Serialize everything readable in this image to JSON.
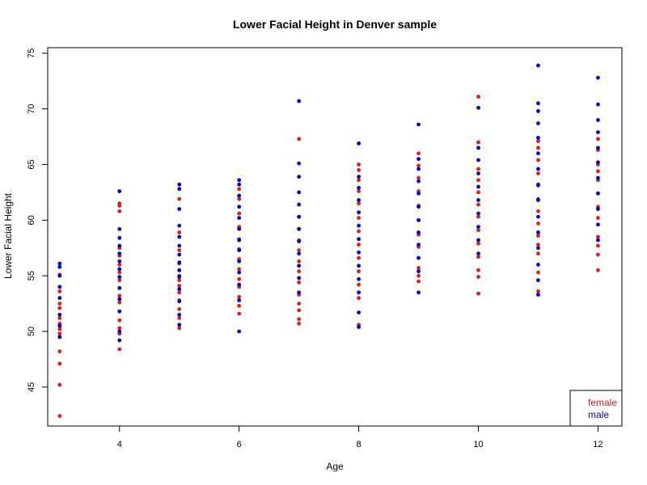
{
  "chart_data": {
    "type": "scatter",
    "title": "Lower Facial Height in Denver sample",
    "xlabel": "Age",
    "ylabel": "Lower Facial Height",
    "xlim": [
      2.8,
      12.4
    ],
    "ylim": [
      41.5,
      75.5
    ],
    "xticks": [
      4,
      6,
      8,
      10,
      12
    ],
    "yticks": [
      45,
      50,
      55,
      60,
      65,
      70,
      75
    ],
    "grid": false,
    "legend_position": "bottom-right",
    "colors": {
      "female": "#e31a1c",
      "male": "#0000cc",
      "axis": "#000000"
    },
    "series": [
      {
        "name": "female",
        "color": "#e31a1c",
        "points": [
          [
            3,
            42.4
          ],
          [
            3,
            45.2
          ],
          [
            3,
            47.1
          ],
          [
            3,
            48.2
          ],
          [
            3,
            49.8
          ],
          [
            3,
            50.2
          ],
          [
            3,
            50.7
          ],
          [
            3,
            51.2
          ],
          [
            3,
            52.1
          ],
          [
            3,
            52.5
          ],
          [
            3,
            53.6
          ],
          [
            3,
            55.1
          ],
          [
            4,
            48.4
          ],
          [
            4,
            49.8
          ],
          [
            4,
            50.3
          ],
          [
            4,
            51.0
          ],
          [
            4,
            51.8
          ],
          [
            4,
            52.6
          ],
          [
            4,
            53.2
          ],
          [
            4,
            53.9
          ],
          [
            4,
            54.6
          ],
          [
            4,
            55.3
          ],
          [
            4,
            56.0
          ],
          [
            4,
            56.8
          ],
          [
            4,
            57.5
          ],
          [
            4,
            60.8
          ],
          [
            4,
            61.3
          ],
          [
            4,
            61.5
          ],
          [
            5,
            50.3
          ],
          [
            5,
            51.2
          ],
          [
            5,
            52.0
          ],
          [
            5,
            52.8
          ],
          [
            5,
            53.5
          ],
          [
            5,
            54.1
          ],
          [
            5,
            54.6
          ],
          [
            5,
            55.0
          ],
          [
            5,
            55.5
          ],
          [
            5,
            56.1
          ],
          [
            5,
            57.3
          ],
          [
            5,
            58.9
          ],
          [
            5,
            61.9
          ],
          [
            6,
            51.6
          ],
          [
            6,
            52.3
          ],
          [
            6,
            53.1
          ],
          [
            6,
            54.0
          ],
          [
            6,
            54.7
          ],
          [
            6,
            55.6
          ],
          [
            6,
            56.5
          ],
          [
            6,
            57.4
          ],
          [
            6,
            58.3
          ],
          [
            6,
            59.4
          ],
          [
            6,
            60.6
          ],
          [
            6,
            61.9
          ],
          [
            6,
            62.8
          ],
          [
            7,
            50.7
          ],
          [
            7,
            51.1
          ],
          [
            7,
            51.9
          ],
          [
            7,
            52.5
          ],
          [
            7,
            53.3
          ],
          [
            7,
            54.4
          ],
          [
            7,
            55.4
          ],
          [
            7,
            56.3
          ],
          [
            7,
            57.3
          ],
          [
            7,
            58.2
          ],
          [
            7,
            59.2
          ],
          [
            7,
            60.3
          ],
          [
            7,
            67.3
          ],
          [
            8,
            50.6
          ],
          [
            8,
            53.0
          ],
          [
            8,
            54.2
          ],
          [
            8,
            55.4
          ],
          [
            8,
            56.6
          ],
          [
            8,
            57.8
          ],
          [
            8,
            59.0
          ],
          [
            8,
            60.2
          ],
          [
            8,
            61.5
          ],
          [
            8,
            62.6
          ],
          [
            8,
            63.6
          ],
          [
            8,
            64.5
          ],
          [
            8,
            65.0
          ],
          [
            9,
            54.5
          ],
          [
            9,
            55.0
          ],
          [
            9,
            55.7
          ],
          [
            9,
            56.6
          ],
          [
            9,
            57.6
          ],
          [
            9,
            58.7
          ],
          [
            9,
            60.0
          ],
          [
            9,
            61.3
          ],
          [
            9,
            62.6
          ],
          [
            9,
            63.8
          ],
          [
            9,
            64.9
          ],
          [
            9,
            65.5
          ],
          [
            9,
            66.0
          ],
          [
            10,
            53.4
          ],
          [
            10,
            54.9
          ],
          [
            10,
            55.5
          ],
          [
            10,
            56.7
          ],
          [
            10,
            57.9
          ],
          [
            10,
            59.1
          ],
          [
            10,
            60.3
          ],
          [
            10,
            61.4
          ],
          [
            10,
            62.5
          ],
          [
            10,
            63.6
          ],
          [
            10,
            64.6
          ],
          [
            10,
            67.0
          ],
          [
            10,
            71.1
          ],
          [
            11,
            53.6
          ],
          [
            11,
            55.3
          ],
          [
            11,
            57.0
          ],
          [
            11,
            57.8
          ],
          [
            11,
            58.6
          ],
          [
            11,
            59.7
          ],
          [
            11,
            60.8
          ],
          [
            11,
            61.9
          ],
          [
            11,
            63.1
          ],
          [
            11,
            64.2
          ],
          [
            11,
            65.4
          ],
          [
            11,
            66.5
          ],
          [
            11,
            67.1
          ],
          [
            12,
            55.5
          ],
          [
            12,
            56.9
          ],
          [
            12,
            57.7
          ],
          [
            12,
            58.5
          ],
          [
            12,
            60.2
          ],
          [
            12,
            61.2
          ],
          [
            12,
            62.4
          ],
          [
            12,
            63.6
          ],
          [
            12,
            64.4
          ],
          [
            12,
            65.0
          ],
          [
            12,
            66.3
          ],
          [
            12,
            67.3
          ]
        ]
      },
      {
        "name": "male",
        "color": "#0000cc",
        "points": [
          [
            3,
            49.5
          ],
          [
            3,
            50.5
          ],
          [
            3,
            51.5
          ],
          [
            3,
            53.0
          ],
          [
            3,
            54.0
          ],
          [
            3,
            55.0
          ],
          [
            3,
            55.8
          ],
          [
            3,
            56.1
          ],
          [
            4,
            49.2
          ],
          [
            4,
            50.0
          ],
          [
            4,
            51.8
          ],
          [
            4,
            52.9
          ],
          [
            4,
            53.9
          ],
          [
            4,
            54.9
          ],
          [
            4,
            55.6
          ],
          [
            4,
            56.3
          ],
          [
            4,
            57.0
          ],
          [
            4,
            57.7
          ],
          [
            4,
            58.4
          ],
          [
            4,
            59.2
          ],
          [
            4,
            62.6
          ],
          [
            5,
            50.6
          ],
          [
            5,
            51.5
          ],
          [
            5,
            52.7
          ],
          [
            5,
            53.8
          ],
          [
            5,
            54.9
          ],
          [
            5,
            55.5
          ],
          [
            5,
            56.2
          ],
          [
            5,
            56.9
          ],
          [
            5,
            57.7
          ],
          [
            5,
            58.5
          ],
          [
            5,
            59.5
          ],
          [
            5,
            61.0
          ],
          [
            5,
            62.8
          ],
          [
            5,
            63.2
          ],
          [
            6,
            50.0
          ],
          [
            6,
            52.8
          ],
          [
            6,
            54.2
          ],
          [
            6,
            55.3
          ],
          [
            6,
            56.3
          ],
          [
            6,
            57.3
          ],
          [
            6,
            58.2
          ],
          [
            6,
            59.2
          ],
          [
            6,
            60.2
          ],
          [
            6,
            61.2
          ],
          [
            6,
            62.2
          ],
          [
            6,
            63.2
          ],
          [
            6,
            63.6
          ],
          [
            7,
            53.5
          ],
          [
            7,
            54.8
          ],
          [
            7,
            55.9
          ],
          [
            7,
            57.0
          ],
          [
            7,
            58.1
          ],
          [
            7,
            59.2
          ],
          [
            7,
            60.3
          ],
          [
            7,
            61.4
          ],
          [
            7,
            62.5
          ],
          [
            7,
            63.9
          ],
          [
            7,
            65.1
          ],
          [
            7,
            70.7
          ],
          [
            8,
            50.4
          ],
          [
            8,
            51.7
          ],
          [
            8,
            53.5
          ],
          [
            8,
            54.7
          ],
          [
            8,
            55.9
          ],
          [
            8,
            57.1
          ],
          [
            8,
            58.3
          ],
          [
            8,
            59.5
          ],
          [
            8,
            60.7
          ],
          [
            8,
            61.8
          ],
          [
            8,
            62.9
          ],
          [
            8,
            63.9
          ],
          [
            8,
            66.9
          ],
          [
            9,
            53.5
          ],
          [
            9,
            55.4
          ],
          [
            9,
            56.6
          ],
          [
            9,
            57.8
          ],
          [
            9,
            58.9
          ],
          [
            9,
            60.0
          ],
          [
            9,
            61.2
          ],
          [
            9,
            62.4
          ],
          [
            9,
            63.5
          ],
          [
            9,
            64.6
          ],
          [
            9,
            65.5
          ],
          [
            9,
            68.6
          ],
          [
            10,
            57.0
          ],
          [
            10,
            58.2
          ],
          [
            10,
            59.4
          ],
          [
            10,
            60.6
          ],
          [
            10,
            61.8
          ],
          [
            10,
            63.0
          ],
          [
            10,
            64.2
          ],
          [
            10,
            65.4
          ],
          [
            10,
            66.5
          ],
          [
            10,
            70.1
          ],
          [
            11,
            53.3
          ],
          [
            11,
            54.6
          ],
          [
            11,
            56.0
          ],
          [
            11,
            57.5
          ],
          [
            11,
            58.9
          ],
          [
            11,
            60.3
          ],
          [
            11,
            61.8
          ],
          [
            11,
            63.2
          ],
          [
            11,
            64.6
          ],
          [
            11,
            66.0
          ],
          [
            11,
            67.4
          ],
          [
            11,
            68.7
          ],
          [
            11,
            69.8
          ],
          [
            11,
            70.5
          ],
          [
            11,
            73.9
          ],
          [
            12,
            58.2
          ],
          [
            12,
            59.6
          ],
          [
            12,
            61.0
          ],
          [
            12,
            62.4
          ],
          [
            12,
            63.8
          ],
          [
            12,
            65.2
          ],
          [
            12,
            66.5
          ],
          [
            12,
            67.9
          ],
          [
            12,
            69.0
          ],
          [
            12,
            70.4
          ],
          [
            12,
            72.8
          ]
        ]
      }
    ]
  }
}
